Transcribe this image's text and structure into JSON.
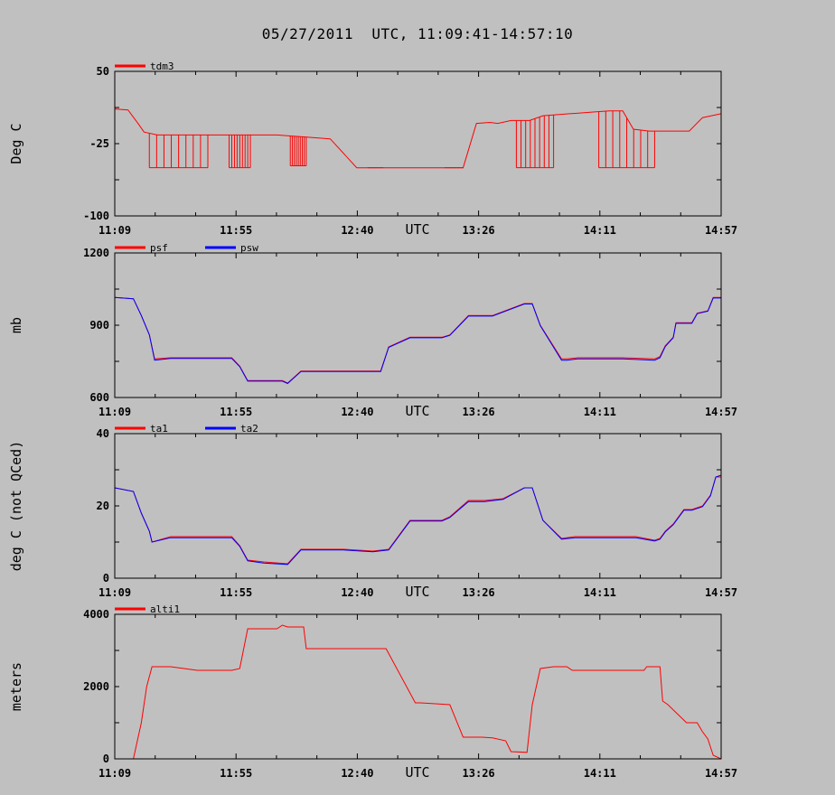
{
  "title": "05/27/2011  UTC, 11:09:41-14:57:10",
  "colors": {
    "background": "#c0c0c0",
    "red": "#ff0000",
    "blue": "#0000ff"
  },
  "chart_data": [
    {
      "type": "line",
      "ylabel": "Deg C",
      "xlabel": "UTC",
      "ylim": [
        -100,
        50
      ],
      "yticks": [
        "50",
        "-25",
        "-100"
      ],
      "ytick_values": [
        50,
        -25,
        -100
      ],
      "xticks": [
        "11:09",
        "11:55",
        "12:40",
        "13:26",
        "14:11",
        "14:57"
      ],
      "xlim_minutes": [
        669,
        897
      ],
      "legend": "top-left",
      "series": [
        {
          "name": "tdm3",
          "color": "#ff0000",
          "x": [
            669,
            674,
            678,
            680,
            685,
            690,
            700,
            710,
            720,
            730,
            735,
            740,
            745,
            750,
            760,
            770,
            780,
            785,
            790,
            795,
            800,
            805,
            810,
            813,
            818,
            825,
            830,
            835,
            840,
            845,
            850,
            855,
            860,
            864,
            870,
            878,
            885,
            890,
            897
          ],
          "y": [
            11,
            10,
            -5,
            -13,
            -16,
            -16,
            -16,
            -16,
            -16,
            -16,
            -17,
            -18,
            -19,
            -20,
            -50,
            -50,
            -50,
            -50,
            -50,
            -50,
            -50,
            -4,
            -3,
            -4,
            -1,
            -1,
            4,
            5,
            6,
            7,
            8,
            9,
            9,
            -10,
            -12,
            -12,
            -12,
            2,
            6
          ],
          "spikes": [
            [
              682,
              704,
              -50
            ],
            [
              712,
              720,
              -50
            ],
            [
              735,
              741,
              -48
            ],
            [
              764,
              770,
              -50
            ],
            [
              793,
              800,
              -50
            ],
            [
              820,
              834,
              -50
            ],
            [
              851,
              872,
              -50
            ]
          ]
        }
      ]
    },
    {
      "type": "line",
      "ylabel": "mb",
      "xlabel": "UTC",
      "ylim": [
        600,
        1200
      ],
      "yticks": [
        "1200",
        "900",
        "600"
      ],
      "ytick_values": [
        1200,
        900,
        600
      ],
      "xticks": [
        "11:09",
        "11:55",
        "12:40",
        "13:26",
        "14:11",
        "14:57"
      ],
      "xlim_minutes": [
        669,
        897
      ],
      "legend": "top-left",
      "series": [
        {
          "name": "psf",
          "color": "#ff0000",
          "x": [
            669,
            676,
            679,
            682,
            684,
            690,
            700,
            713,
            716,
            719,
            732,
            734,
            739,
            766,
            769,
            772,
            780,
            792,
            795,
            802,
            808,
            811,
            823,
            826,
            829,
            837,
            839,
            843,
            853,
            855,
            860,
            872,
            874,
            876,
            879,
            880,
            886,
            888,
            892,
            894,
            897
          ],
          "y": [
            1015,
            1010,
            940,
            860,
            760,
            765,
            765,
            765,
            730,
            670,
            670,
            660,
            710,
            710,
            710,
            810,
            850,
            850,
            860,
            940,
            940,
            940,
            990,
            990,
            900,
            760,
            760,
            765,
            765,
            765,
            765,
            760,
            770,
            815,
            850,
            910,
            910,
            950,
            960,
            1015,
            1015
          ]
        },
        {
          "name": "psw",
          "color": "#0000ff",
          "x": [
            669,
            676,
            679,
            682,
            684,
            690,
            700,
            713,
            716,
            719,
            732,
            734,
            739,
            766,
            769,
            772,
            780,
            792,
            795,
            802,
            808,
            811,
            823,
            826,
            829,
            837,
            839,
            843,
            853,
            855,
            860,
            872,
            874,
            876,
            879,
            880,
            886,
            888,
            892,
            894,
            897
          ],
          "y": [
            1015,
            1010,
            940,
            860,
            755,
            762,
            762,
            762,
            728,
            668,
            668,
            658,
            708,
            708,
            708,
            808,
            848,
            848,
            858,
            938,
            938,
            938,
            988,
            988,
            898,
            755,
            755,
            760,
            760,
            760,
            760,
            755,
            765,
            812,
            848,
            908,
            908,
            948,
            958,
            1013,
            1013
          ]
        }
      ]
    },
    {
      "type": "line",
      "ylabel": "deg C (not QCed)",
      "xlabel": "UTC",
      "ylim": [
        0,
        40
      ],
      "yticks": [
        "40",
        "20",
        "0"
      ],
      "ytick_values": [
        40,
        20,
        0
      ],
      "xticks": [
        "11:09",
        "11:55",
        "12:40",
        "13:26",
        "14:11",
        "14:57"
      ],
      "xlim_minutes": [
        669,
        897
      ],
      "legend": "top-left",
      "series": [
        {
          "name": "ta1",
          "color": "#ff0000",
          "x": [
            669,
            676,
            679,
            682,
            683,
            690,
            700,
            713,
            716,
            719,
            725,
            734,
            739,
            755,
            766,
            772,
            780,
            792,
            795,
            802,
            808,
            815,
            823,
            826,
            830,
            837,
            842,
            850,
            860,
            865,
            872,
            874,
            876,
            879,
            883,
            886,
            890,
            893,
            895,
            897
          ],
          "y": [
            25,
            24,
            18,
            13,
            10,
            11.5,
            11.5,
            11.5,
            9,
            5,
            4.5,
            4,
            8,
            8,
            7.5,
            8,
            16,
            16,
            17,
            21.5,
            21.5,
            22,
            25,
            25,
            16,
            11,
            11.5,
            11.5,
            11.5,
            11.5,
            10.5,
            11,
            13,
            15,
            19,
            19,
            20,
            23,
            28,
            28
          ]
        },
        {
          "name": "ta2",
          "color": "#0000ff",
          "x": [
            669,
            676,
            679,
            682,
            683,
            690,
            700,
            713,
            716,
            719,
            725,
            734,
            739,
            755,
            766,
            772,
            780,
            792,
            795,
            802,
            808,
            815,
            823,
            826,
            830,
            837,
            842,
            850,
            860,
            865,
            872,
            874,
            876,
            879,
            883,
            886,
            890,
            893,
            895,
            897
          ],
          "y": [
            25,
            24,
            18,
            13,
            10,
            11.2,
            11.2,
            11.2,
            8.8,
            4.8,
            4.2,
            3.8,
            7.8,
            7.8,
            7.3,
            7.8,
            15.8,
            15.8,
            16.8,
            21.2,
            21.2,
            21.8,
            25,
            25,
            16,
            10.8,
            11.2,
            11.2,
            11.2,
            11.2,
            10.3,
            10.8,
            12.8,
            14.8,
            18.8,
            18.8,
            19.8,
            22.8,
            28,
            28.5
          ]
        }
      ]
    },
    {
      "type": "line",
      "ylabel": "meters",
      "xlabel": "UTC",
      "ylim": [
        0,
        4000
      ],
      "yticks": [
        "4000",
        "2000",
        "0"
      ],
      "ytick_values": [
        4000,
        2000,
        0
      ],
      "xticks": [
        "11:09",
        "11:55",
        "12:40",
        "13:26",
        "14:11",
        "14:57"
      ],
      "xlim_minutes": [
        669,
        897
      ],
      "legend": "top-left",
      "series": [
        {
          "name": "alti1",
          "color": "#ff0000",
          "x": [
            669,
            676,
            679,
            681,
            683,
            690,
            700,
            713,
            716,
            719,
            730,
            732,
            734,
            740,
            741,
            760,
            762,
            765,
            771,
            782,
            784,
            795,
            800,
            807,
            811,
            816,
            818,
            824,
            826,
            829,
            834,
            839,
            841,
            846,
            868,
            869,
            874,
            875,
            877,
            884,
            885,
            888,
            890,
            892,
            894,
            897
          ],
          "y": [
            0,
            0,
            1000,
            2000,
            2550,
            2550,
            2450,
            2450,
            2500,
            3600,
            3600,
            3700,
            3650,
            3650,
            3050,
            3050,
            3050,
            3050,
            3050,
            1550,
            1550,
            1500,
            600,
            600,
            580,
            500,
            200,
            180,
            1500,
            2500,
            2550,
            2550,
            2450,
            2450,
            2450,
            2550,
            2550,
            1600,
            1500,
            1000,
            1000,
            1000,
            750,
            550,
            100,
            0
          ]
        }
      ]
    }
  ]
}
